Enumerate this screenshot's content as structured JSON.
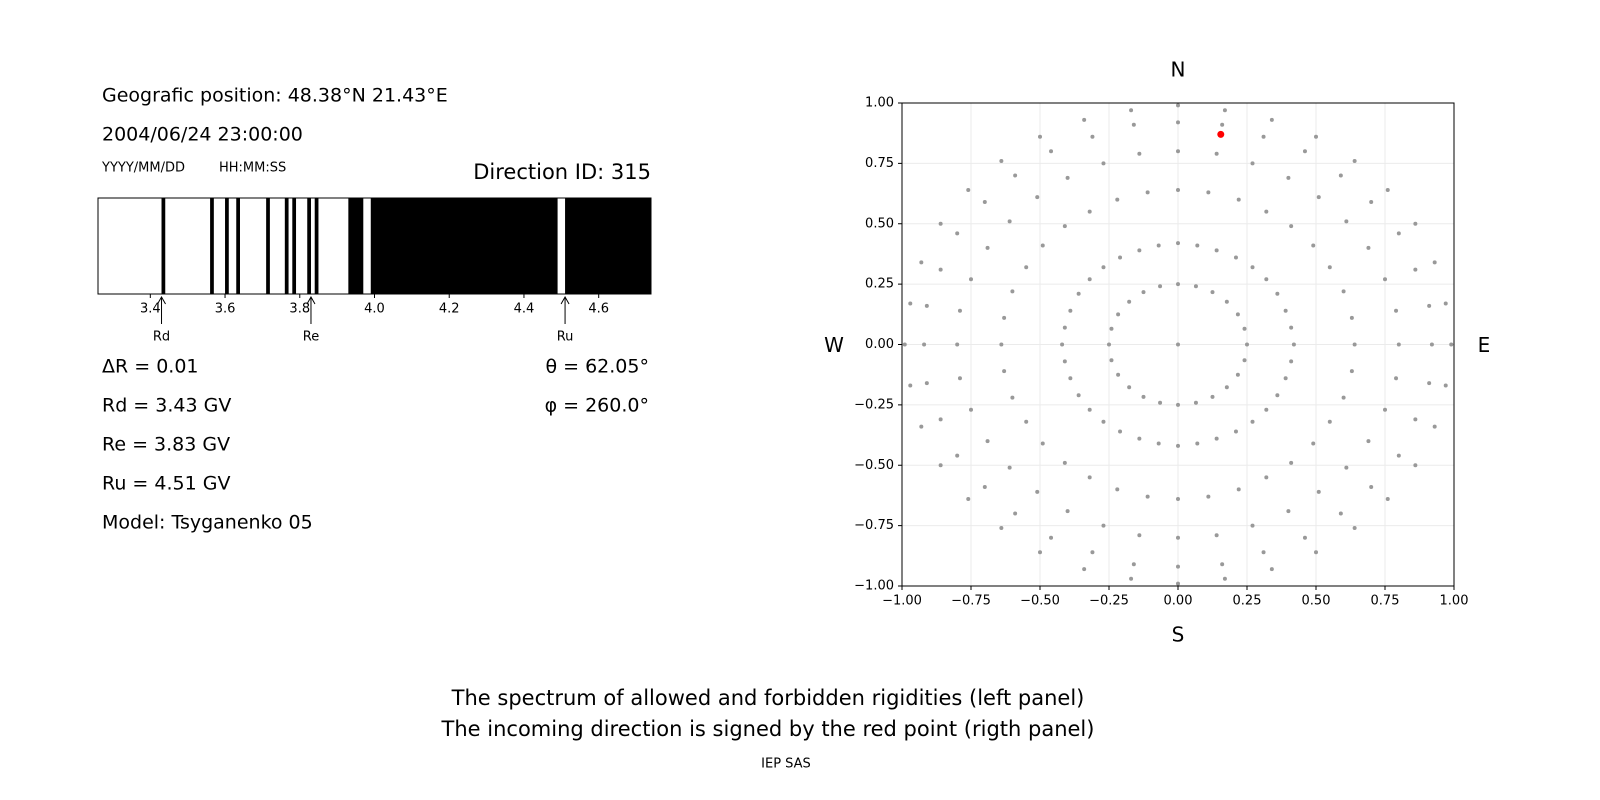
{
  "info": {
    "position": "Geografic position: 48.38°N 21.43°E",
    "datetime": "2004/06/24 23:00:00",
    "date_format": "YYYY/MM/DD",
    "time_format": "HH:MM:SS",
    "direction": "Direction ID: 315",
    "delta_r": "ΔR = 0.01",
    "rd": "Rd = 3.43 GV",
    "re": "Re = 3.83 GV",
    "ru": "Ru = 4.51 GV",
    "model": "Model: Tsyganenko 05",
    "theta": "θ = 62.05°",
    "phi": "φ = 260.0°"
  },
  "chart_data": [
    {
      "type": "spectrum",
      "xlim": [
        3.26,
        4.74
      ],
      "xticks": [
        3.4,
        3.6,
        3.8,
        {
          "value": 4,
          "label": "4.0"
        },
        4.2,
        4.4,
        4.6
      ],
      "color": "#000000",
      "ranges": [
        [
          3.43,
          3.44
        ],
        [
          3.56,
          3.57
        ],
        [
          3.6,
          3.61
        ],
        [
          3.63,
          3.64
        ],
        [
          3.71,
          3.72
        ],
        [
          3.76,
          3.77
        ],
        [
          3.78,
          3.79
        ],
        [
          3.82,
          3.83
        ],
        [
          3.84,
          3.85
        ],
        [
          3.93,
          3.97
        ],
        [
          3.99,
          4.49
        ],
        [
          4.51,
          4.74
        ]
      ],
      "markers": [
        {
          "label": "Rd",
          "value": 3.43
        },
        {
          "label": "Re",
          "value": 3.83
        },
        {
          "label": "Ru",
          "value": 4.51
        }
      ]
    },
    {
      "type": "scatter",
      "xlim": [
        -1,
        1
      ],
      "ylim": [
        -1,
        1
      ],
      "grid": true,
      "xticks": [
        {
          "value": -1,
          "label": "−1.00"
        },
        {
          "value": -0.75,
          "label": "−0.75"
        },
        {
          "value": -0.5,
          "label": "−0.50"
        },
        {
          "value": -0.25,
          "label": "−0.25"
        },
        {
          "value": 0,
          "label": "0.00"
        },
        {
          "value": 0.25,
          "label": "0.25"
        },
        {
          "value": 0.5,
          "label": "0.50"
        },
        {
          "value": 0.75,
          "label": "0.75"
        },
        {
          "value": 1,
          "label": "1.00"
        }
      ],
      "yticks": [
        {
          "value": -1,
          "label": "−1.00"
        },
        {
          "value": -0.75,
          "label": "−0.75"
        },
        {
          "value": -0.5,
          "label": "−0.50"
        },
        {
          "value": -0.25,
          "label": "−0.25"
        },
        {
          "value": 0,
          "label": "0.00"
        },
        {
          "value": 0.25,
          "label": "0.25"
        },
        {
          "value": 0.5,
          "label": "0.50"
        },
        {
          "value": 0.75,
          "label": "0.75"
        },
        {
          "value": 1,
          "label": "1.00"
        }
      ],
      "compass": {
        "north": "N",
        "south": "S",
        "west": "W",
        "east": "E"
      },
      "series": [
        {
          "color": "#999999",
          "x": [
            0,
            0,
            0,
            0,
            0,
            0.07,
            0.11,
            0.14,
            0.16,
            0.17,
            0.14,
            0.22,
            0.27,
            0.31,
            0.34,
            0.21,
            0.32,
            0.4,
            0.46,
            0.5,
            0.27,
            0.41,
            0.51,
            0.59,
            0.64,
            0.32,
            0.49,
            0.61,
            0.7,
            0.76,
            0.36,
            0.55,
            0.69,
            0.8,
            0.86,
            0.39,
            0.6,
            0.75,
            0.86,
            0.93,
            0.41,
            0.63,
            0.79,
            0.91,
            0.97,
            0.42,
            0.64,
            0.8,
            0.92,
            0.99,
            0.41,
            0.63,
            0.79,
            0.91,
            0.97,
            0.39,
            0.6,
            0.75,
            0.86,
            0.93,
            0.36,
            0.55,
            0.69,
            0.8,
            0.86,
            0.32,
            0.49,
            0.61,
            0.7,
            0.76,
            0.27,
            0.41,
            0.51,
            0.59,
            0.64,
            0.21,
            0.32,
            0.4,
            0.46,
            0.5,
            0.14,
            0.22,
            0.27,
            0.31,
            0.34,
            0.07,
            0.11,
            0.14,
            0.16,
            0.17,
            0,
            0,
            0,
            0,
            0,
            -0.07,
            -0.11,
            -0.14,
            -0.16,
            -0.17,
            -0.14,
            -0.22,
            -0.27,
            -0.31,
            -0.34,
            -0.21,
            -0.32,
            -0.4,
            -0.46,
            -0.5,
            -0.27,
            -0.41,
            -0.51,
            -0.59,
            -0.64,
            -0.32,
            -0.49,
            -0.61,
            -0.7,
            -0.76,
            -0.36,
            -0.55,
            -0.69,
            -0.8,
            -0.86,
            -0.39,
            -0.6,
            -0.75,
            -0.86,
            -0.93,
            -0.41,
            -0.63,
            -0.79,
            -0.91,
            -0.97,
            -0.42,
            -0.64,
            -0.8,
            -0.92,
            -0.99,
            -0.41,
            -0.63,
            -0.79,
            -0.91,
            -0.97,
            -0.39,
            -0.6,
            -0.75,
            -0.86,
            -0.93,
            -0.36,
            -0.55,
            -0.69,
            -0.8,
            -0.86,
            -0.32,
            -0.49,
            -0.61,
            -0.7,
            -0.76,
            -0.27,
            -0.41,
            -0.51,
            -0.59,
            -0.64,
            -0.21,
            -0.32,
            -0.4,
            -0.46,
            -0.5,
            -0.14,
            -0.22,
            -0.27,
            -0.31,
            -0.34,
            -0.07,
            -0.11,
            -0.14,
            -0.16,
            -0.17
          ],
          "y": [
            0.42,
            0.64,
            0.8,
            0.92,
            0.99,
            0.41,
            0.63,
            0.79,
            0.91,
            0.97,
            0.39,
            0.6,
            0.75,
            0.86,
            0.93,
            0.36,
            0.55,
            0.69,
            0.8,
            0.86,
            0.32,
            0.49,
            0.61,
            0.7,
            0.76,
            0.27,
            0.41,
            0.51,
            0.59,
            0.64,
            0.21,
            0.32,
            0.4,
            0.46,
            0.5,
            0.14,
            0.22,
            0.27,
            0.31,
            0.34,
            0.07,
            0.11,
            0.14,
            0.16,
            0.17,
            0,
            0,
            0,
            0,
            0,
            -0.07,
            -0.11,
            -0.14,
            -0.16,
            -0.17,
            -0.14,
            -0.22,
            -0.27,
            -0.31,
            -0.34,
            -0.21,
            -0.32,
            -0.4,
            -0.46,
            -0.5,
            -0.27,
            -0.41,
            -0.51,
            -0.59,
            -0.64,
            -0.32,
            -0.49,
            -0.61,
            -0.7,
            -0.76,
            -0.36,
            -0.55,
            -0.69,
            -0.8,
            -0.86,
            -0.39,
            -0.6,
            -0.75,
            -0.86,
            -0.93,
            -0.41,
            -0.63,
            -0.79,
            -0.91,
            -0.97,
            -0.42,
            -0.64,
            -0.8,
            -0.92,
            -0.99,
            -0.41,
            -0.63,
            -0.79,
            -0.91,
            -0.97,
            -0.39,
            -0.6,
            -0.75,
            -0.86,
            -0.93,
            -0.36,
            -0.55,
            -0.69,
            -0.8,
            -0.86,
            -0.32,
            -0.49,
            -0.61,
            -0.7,
            -0.76,
            -0.27,
            -0.41,
            -0.51,
            -0.59,
            -0.64,
            -0.21,
            -0.32,
            -0.4,
            -0.46,
            -0.5,
            -0.14,
            -0.22,
            -0.27,
            -0.31,
            -0.34,
            -0.07,
            -0.11,
            -0.14,
            -0.16,
            -0.17,
            0,
            0,
            0,
            0,
            0,
            0.07,
            0.11,
            0.14,
            0.16,
            0.17,
            0.14,
            0.22,
            0.27,
            0.31,
            0.34,
            0.21,
            0.32,
            0.4,
            0.46,
            0.5,
            0.27,
            0.41,
            0.51,
            0.59,
            0.64,
            0.32,
            0.49,
            0.61,
            0.7,
            0.76,
            0.36,
            0.55,
            0.69,
            0.8,
            0.86,
            0.39,
            0.6,
            0.75,
            0.86,
            0.93,
            0.41,
            0.63,
            0.79,
            0.91,
            0.97
          ]
        },
        {
          "color": "#999999",
          "x": [
            0,
            0.065,
            0.125,
            0.177,
            0.217,
            0.241,
            0.25,
            0.241,
            0.217,
            0.177,
            0.125,
            0.065,
            0,
            -0.065,
            -0.125,
            -0.177,
            -0.217,
            -0.241,
            -0.25,
            -0.241,
            -0.217,
            -0.177,
            -0.125,
            -0.065,
            0
          ],
          "y": [
            0.25,
            0.241,
            0.217,
            0.177,
            0.125,
            0.065,
            0,
            -0.065,
            -0.125,
            -0.177,
            -0.217,
            -0.241,
            -0.25,
            -0.241,
            -0.217,
            -0.177,
            -0.125,
            -0.065,
            0,
            0.065,
            0.125,
            0.177,
            0.217,
            0.241,
            0
          ]
        },
        {
          "color": "#ff0000",
          "x": [
            0.155
          ],
          "y": [
            0.87
          ]
        }
      ]
    }
  ],
  "caption": [
    "The spectrum of allowed and forbidden rigidities (left panel)",
    "The incoming direction is signed by the red point (rigth panel)"
  ],
  "footer": "IEP SAS"
}
